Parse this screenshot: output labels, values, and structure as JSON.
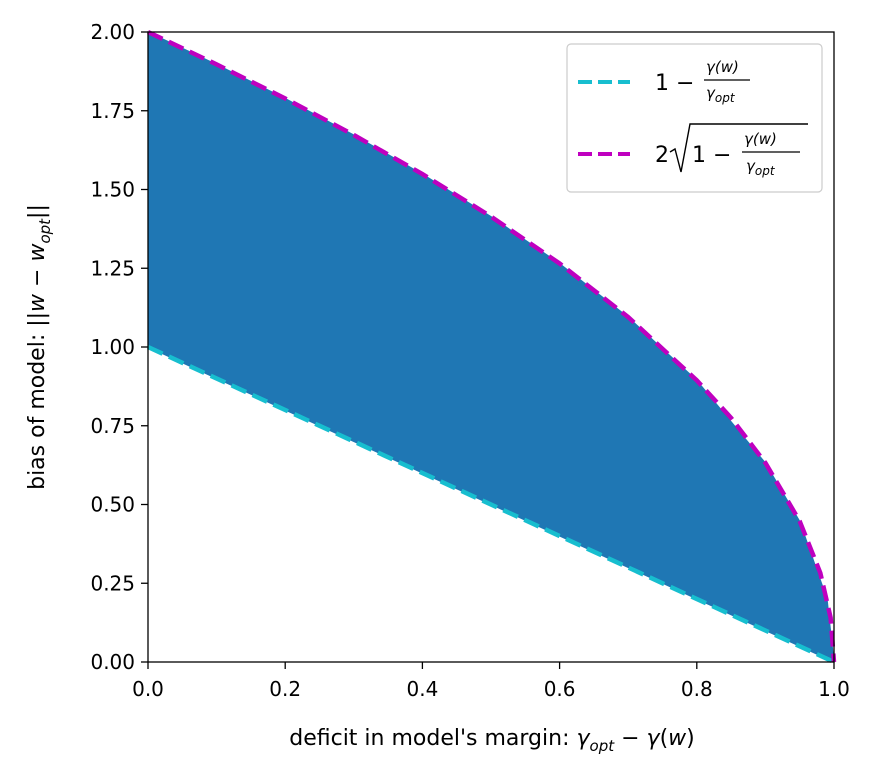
{
  "chart_data": {
    "type": "area",
    "xlabel_prefix": "deficit in model's margin: ",
    "ylabel_prefix": "bias of model: ",
    "xlim": [
      0.0,
      1.0
    ],
    "ylim": [
      0.0,
      2.0
    ],
    "xticks": [
      0.0,
      0.2,
      0.4,
      0.6,
      0.8,
      1.0
    ],
    "xtick_labels": [
      "0.0",
      "0.2",
      "0.4",
      "0.6",
      "0.8",
      "1.0"
    ],
    "yticks": [
      0.0,
      0.25,
      0.5,
      0.75,
      1.0,
      1.25,
      1.5,
      1.75,
      2.0
    ],
    "ytick_labels": [
      "0.00",
      "0.25",
      "0.50",
      "0.75",
      "1.00",
      "1.25",
      "1.50",
      "1.75",
      "2.00"
    ],
    "fill": {
      "color": "#1f77b4",
      "x": [
        0.0,
        0.1,
        0.2,
        0.3,
        0.4,
        0.5,
        0.6,
        0.7,
        0.8,
        0.9,
        0.95,
        0.99,
        1.0
      ],
      "lower": [
        1.0,
        0.9,
        0.8,
        0.7,
        0.6,
        0.5,
        0.4,
        0.3,
        0.2,
        0.1,
        0.05,
        0.01,
        0.0
      ],
      "upper": [
        2.0,
        1.897,
        1.789,
        1.673,
        1.549,
        1.414,
        1.265,
        1.095,
        0.894,
        0.632,
        0.447,
        0.2,
        0.0
      ]
    },
    "series": [
      {
        "name": "1 - γ(w)/γopt",
        "color": "#17becf",
        "style": "dashed",
        "x": [
          0.0,
          1.0
        ],
        "y": [
          1.0,
          0.0
        ]
      },
      {
        "name": "2 sqrt(1 - γ(w)/γopt)",
        "color": "#bf00bf",
        "style": "dashed",
        "x": [
          0.0,
          0.1,
          0.2,
          0.3,
          0.4,
          0.5,
          0.6,
          0.7,
          0.8,
          0.85,
          0.9,
          0.95,
          0.98,
          0.995,
          1.0
        ],
        "y": [
          2.0,
          1.897,
          1.789,
          1.673,
          1.549,
          1.414,
          1.265,
          1.095,
          0.894,
          0.775,
          0.632,
          0.447,
          0.283,
          0.141,
          0.0
        ]
      }
    ],
    "legend": {
      "position": "top-right",
      "entries": [
        {
          "formula": "1 − γ(w)/γopt",
          "color": "#17becf"
        },
        {
          "formula": "2√(1 − γ(w)/γopt)",
          "color": "#bf00bf"
        }
      ]
    }
  }
}
